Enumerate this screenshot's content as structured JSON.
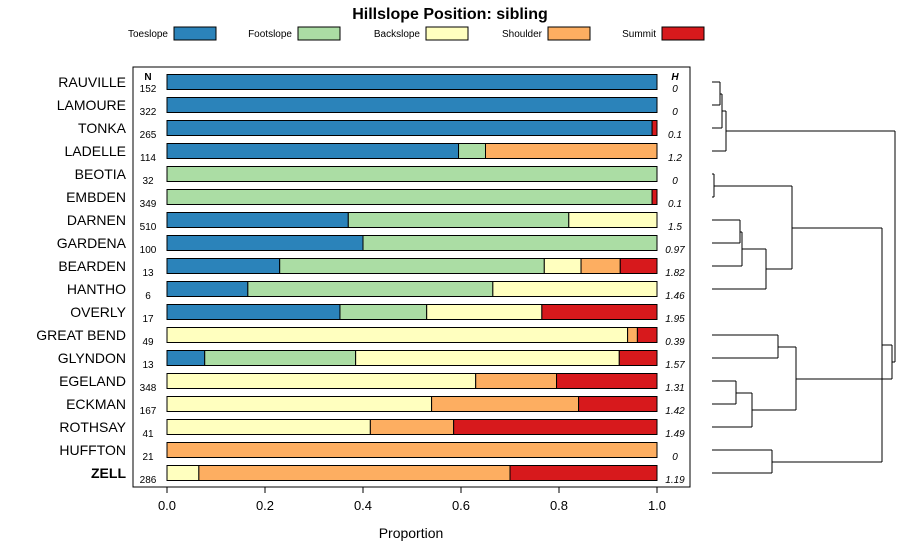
{
  "chart_data": {
    "type": "bar",
    "orientation": "horizontal-stacked",
    "title": "Hillslope Position: sibling",
    "xlabel": "Proportion",
    "xlim": [
      0,
      1
    ],
    "xticks": [
      "0.0",
      "0.2",
      "0.4",
      "0.6",
      "0.8",
      "1.0"
    ],
    "n_header": "N",
    "h_header": "H",
    "highlight": "ZELL",
    "series": [
      {
        "name": "Toeslope",
        "color": "#2b83ba"
      },
      {
        "name": "Footslope",
        "color": "#abdda4"
      },
      {
        "name": "Backslope",
        "color": "#ffffbf"
      },
      {
        "name": "Shoulder",
        "color": "#fdae61"
      },
      {
        "name": "Summit",
        "color": "#d7191c"
      }
    ],
    "rows": [
      {
        "name": "RAUVILLE",
        "n": "152",
        "h": "0",
        "values": [
          1.0,
          0,
          0,
          0,
          0
        ]
      },
      {
        "name": "LAMOURE",
        "n": "322",
        "h": "0",
        "values": [
          1.0,
          0,
          0,
          0,
          0
        ]
      },
      {
        "name": "TONKA",
        "n": "265",
        "h": "0.1",
        "values": [
          0.99,
          0,
          0,
          0,
          0.01
        ]
      },
      {
        "name": "LADELLE",
        "n": "114",
        "h": "1.2",
        "values": [
          0.595,
          0.055,
          0,
          0.35,
          0
        ]
      },
      {
        "name": "BEOTIA",
        "n": "32",
        "h": "0",
        "values": [
          0,
          1.0,
          0,
          0,
          0
        ]
      },
      {
        "name": "EMBDEN",
        "n": "349",
        "h": "0.1",
        "values": [
          0,
          0.99,
          0,
          0,
          0.01
        ]
      },
      {
        "name": "DARNEN",
        "n": "510",
        "h": "1.5",
        "values": [
          0.37,
          0.45,
          0.18,
          0,
          0
        ]
      },
      {
        "name": "GARDENA",
        "n": "100",
        "h": "0.97",
        "values": [
          0.4,
          0.6,
          0,
          0,
          0
        ]
      },
      {
        "name": "BEARDEN",
        "n": "13",
        "h": "1.82",
        "values": [
          0.23,
          0.54,
          0.075,
          0.08,
          0.075
        ]
      },
      {
        "name": "HANTHO",
        "n": "6",
        "h": "1.46",
        "values": [
          0.165,
          0.5,
          0.335,
          0,
          0
        ]
      },
      {
        "name": "OVERLY",
        "n": "17",
        "h": "1.95",
        "values": [
          0.353,
          0.177,
          0.235,
          0,
          0.235
        ]
      },
      {
        "name": "GREAT BEND",
        "n": "49",
        "h": "0.39",
        "values": [
          0,
          0,
          0.94,
          0.02,
          0.04
        ]
      },
      {
        "name": "GLYNDON",
        "n": "13",
        "h": "1.57",
        "values": [
          0.077,
          0.308,
          0.538,
          0,
          0.077
        ]
      },
      {
        "name": "EGELAND",
        "n": "348",
        "h": "1.31",
        "values": [
          0,
          0,
          0.63,
          0.165,
          0.205
        ]
      },
      {
        "name": "ECKMAN",
        "n": "167",
        "h": "1.42",
        "values": [
          0,
          0,
          0.54,
          0.3,
          0.16
        ]
      },
      {
        "name": "ROTHSAY",
        "n": "41",
        "h": "1.49",
        "values": [
          0,
          0,
          0.415,
          0.17,
          0.415
        ]
      },
      {
        "name": "HUFFTON",
        "n": "21",
        "h": "0",
        "values": [
          0,
          0,
          0,
          1.0,
          0
        ]
      },
      {
        "name": "ZELL",
        "n": "286",
        "h": "1.19",
        "values": [
          0,
          0,
          0.065,
          0.635,
          0.3
        ]
      }
    ]
  }
}
